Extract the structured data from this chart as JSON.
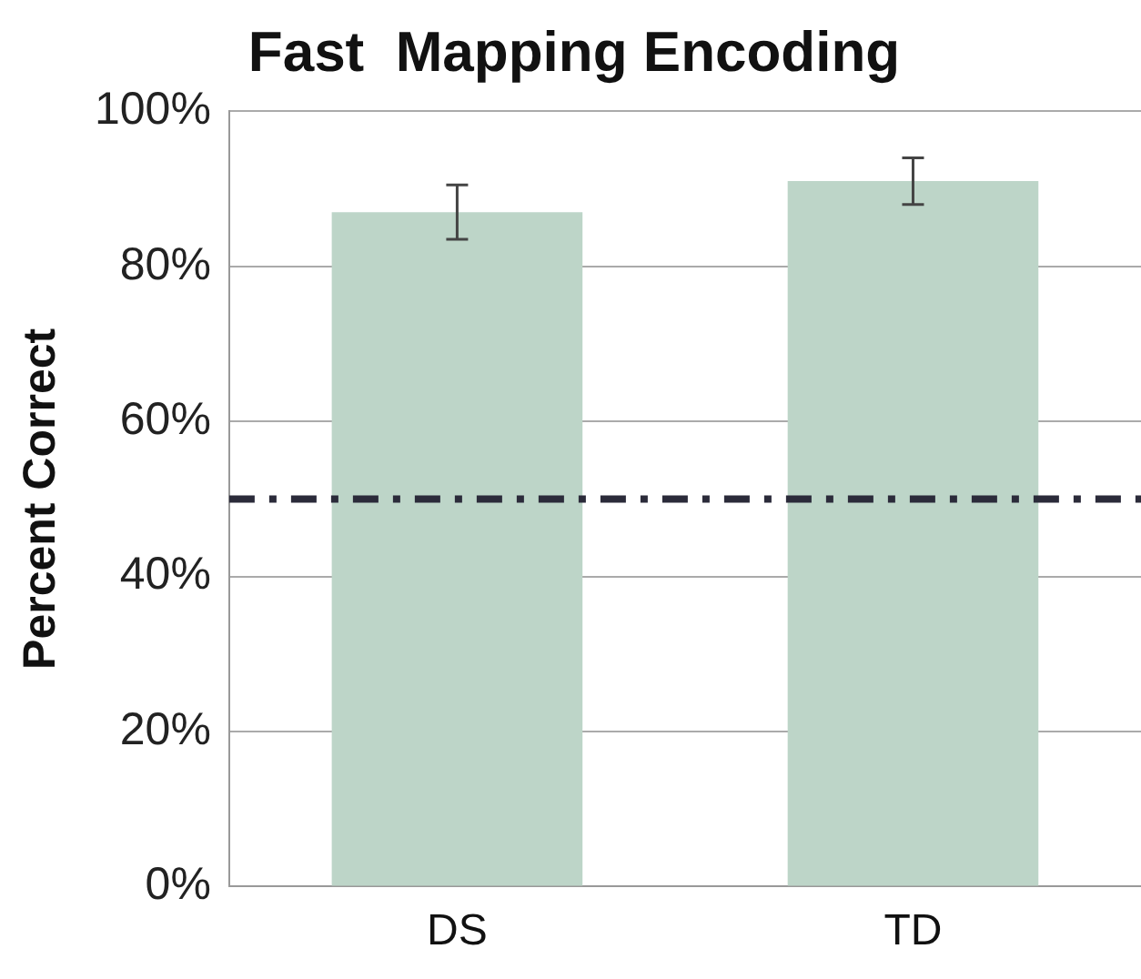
{
  "chart_data": {
    "type": "bar",
    "title": "Fast  Mapping Encoding",
    "ylabel": "Percent Correct",
    "categories": [
      "DS",
      "TD"
    ],
    "values": [
      87,
      91
    ],
    "errors": [
      [
        83.5,
        90.5
      ],
      [
        88,
        94
      ]
    ],
    "color": "#bdd5c8",
    "ylim": [
      0,
      100
    ],
    "yticks": [
      {
        "value": 0,
        "label": "0%"
      },
      {
        "value": 20,
        "label": "20%"
      },
      {
        "value": 40,
        "label": "40%"
      },
      {
        "value": 60,
        "label": "60%"
      },
      {
        "value": 80,
        "label": "80%"
      },
      {
        "value": 100,
        "label": "100%"
      }
    ],
    "ref_lines": [
      {
        "axis": "y",
        "value": 50,
        "color": "#2b2b3a",
        "line_style": "dashdot"
      }
    ],
    "grid": "y",
    "legend": false
  }
}
